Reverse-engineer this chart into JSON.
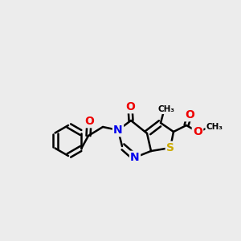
{
  "bg_color": "#ececec",
  "atom_colors": {
    "C": "#000000",
    "N": "#0000ee",
    "O": "#ee0000",
    "S": "#ccaa00",
    "H": "#000000"
  },
  "bond_color": "#000000",
  "bond_width": 1.8,
  "figsize": [
    3.0,
    3.0
  ],
  "dpi": 100,
  "xlim": [
    0,
    300
  ],
  "ylim": [
    0,
    300
  ]
}
